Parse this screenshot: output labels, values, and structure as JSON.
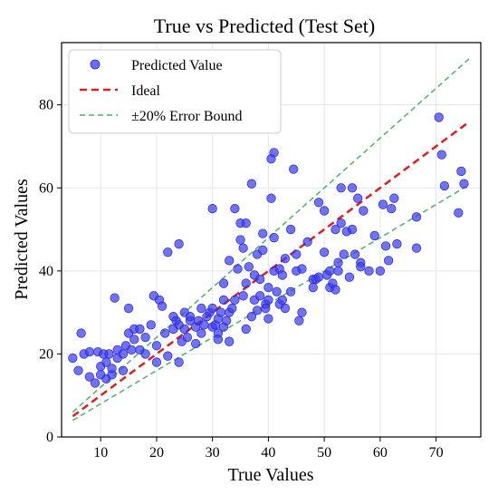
{
  "chart_data": {
    "type": "scatter",
    "title": "True vs Predicted (Test Set)",
    "xlabel": "True Values",
    "ylabel": "Predicted Values",
    "xlim": [
      3,
      78
    ],
    "ylim": [
      0,
      95
    ],
    "xticks": [
      10,
      20,
      30,
      40,
      50,
      60,
      70
    ],
    "yticks": [
      0,
      20,
      40,
      60,
      80
    ],
    "grid": true,
    "legend_position": "top-left",
    "colors": {
      "points": "#3b3bf0",
      "ideal": "#e11d1d",
      "bound": "#4fb06a"
    },
    "series": [
      {
        "name": "Predicted Value",
        "kind": "scatter",
        "points": [
          [
            5,
            19
          ],
          [
            6,
            16
          ],
          [
            7,
            20
          ],
          [
            6.5,
            25
          ],
          [
            8,
            20.5
          ],
          [
            8,
            14.5
          ],
          [
            9,
            13
          ],
          [
            9.5,
            20.5
          ],
          [
            10,
            17
          ],
          [
            10,
            15
          ],
          [
            10.5,
            20
          ],
          [
            11,
            14
          ],
          [
            11,
            18
          ],
          [
            11.5,
            20
          ],
          [
            12,
            15
          ],
          [
            12,
            16.5
          ],
          [
            12.5,
            33.5
          ],
          [
            13,
            21
          ],
          [
            13,
            19
          ],
          [
            14,
            20
          ],
          [
            14,
            16
          ],
          [
            14.5,
            22
          ],
          [
            15,
            25
          ],
          [
            15,
            31
          ],
          [
            15.5,
            21
          ],
          [
            16,
            26
          ],
          [
            16,
            23.5
          ],
          [
            17,
            21
          ],
          [
            17,
            26
          ],
          [
            18,
            20
          ],
          [
            18,
            24
          ],
          [
            19,
            27
          ],
          [
            19.5,
            34
          ],
          [
            20,
            18
          ],
          [
            20,
            22
          ],
          [
            20.5,
            33
          ],
          [
            21,
            31.5
          ],
          [
            21.5,
            25
          ],
          [
            22,
            44.5
          ],
          [
            22,
            19.5
          ],
          [
            23,
            26
          ],
          [
            23,
            29
          ],
          [
            23.5,
            28
          ],
          [
            24,
            46.5
          ],
          [
            24,
            27
          ],
          [
            24,
            18
          ],
          [
            24.5,
            23
          ],
          [
            25,
            30
          ],
          [
            25,
            26
          ],
          [
            25.5,
            24
          ],
          [
            26,
            28
          ],
          [
            26,
            29
          ],
          [
            27,
            26.5
          ],
          [
            27,
            22.5
          ],
          [
            27.5,
            28
          ],
          [
            28,
            25
          ],
          [
            28,
            31
          ],
          [
            28.5,
            27
          ],
          [
            29,
            29
          ],
          [
            29.5,
            30
          ],
          [
            30,
            26.5
          ],
          [
            30,
            55
          ],
          [
            30,
            31
          ],
          [
            30.5,
            27
          ],
          [
            31,
            25
          ],
          [
            31,
            23.5
          ],
          [
            31,
            28.5
          ],
          [
            31.5,
            30
          ],
          [
            32,
            33
          ],
          [
            32,
            26.5
          ],
          [
            32,
            37
          ],
          [
            32.5,
            28
          ],
          [
            33,
            42.5
          ],
          [
            33,
            30
          ],
          [
            33,
            23
          ],
          [
            33.5,
            31
          ],
          [
            34,
            55
          ],
          [
            34,
            33
          ],
          [
            34.5,
            40.5
          ],
          [
            35,
            47.5
          ],
          [
            35,
            51.5
          ],
          [
            35.5,
            45.5
          ],
          [
            35.5,
            34
          ],
          [
            36,
            37
          ],
          [
            36,
            26
          ],
          [
            36,
            51.5
          ],
          [
            36.5,
            41
          ],
          [
            37,
            61
          ],
          [
            37,
            29
          ],
          [
            37.5,
            33
          ],
          [
            37.5,
            39
          ],
          [
            38,
            30.5
          ],
          [
            38,
            44
          ],
          [
            38.5,
            38
          ],
          [
            38.5,
            34
          ],
          [
            39,
            49
          ],
          [
            39,
            45
          ],
          [
            39.5,
            32
          ],
          [
            39.5,
            31
          ],
          [
            40,
            36
          ],
          [
            40,
            33
          ],
          [
            40,
            28.5
          ],
          [
            40.5,
            57.5
          ],
          [
            40.5,
            67
          ],
          [
            41,
            68.5
          ],
          [
            41,
            48
          ],
          [
            41,
            40
          ],
          [
            41.5,
            35
          ],
          [
            42,
            40.5
          ],
          [
            42,
            32
          ],
          [
            42.5,
            33
          ],
          [
            42.5,
            39
          ],
          [
            43,
            43
          ],
          [
            43,
            31
          ],
          [
            44,
            50
          ],
          [
            44,
            35
          ],
          [
            44.5,
            64.5
          ],
          [
            45,
            44
          ],
          [
            45,
            40
          ],
          [
            45.5,
            28
          ],
          [
            46,
            30
          ],
          [
            46,
            40.5
          ],
          [
            47,
            47
          ],
          [
            48,
            36
          ],
          [
            48,
            38
          ],
          [
            48.5,
            38
          ],
          [
            49,
            38.5
          ],
          [
            49,
            56.5
          ],
          [
            50,
            54.5
          ],
          [
            50,
            44.5
          ],
          [
            50.5,
            39
          ],
          [
            51,
            40
          ],
          [
            51,
            36
          ],
          [
            51.5,
            37
          ],
          [
            52,
            50
          ],
          [
            52,
            35.5
          ],
          [
            52.5,
            42
          ],
          [
            52.5,
            40
          ],
          [
            53,
            60
          ],
          [
            53,
            51.5
          ],
          [
            53.5,
            44
          ],
          [
            54,
            49.5
          ],
          [
            54.5,
            38.5
          ],
          [
            55,
            60
          ],
          [
            55,
            50
          ],
          [
            55.5,
            44
          ],
          [
            56,
            57.5
          ],
          [
            56.5,
            42
          ],
          [
            56.5,
            41
          ],
          [
            57,
            54.5
          ],
          [
            58,
            40
          ],
          [
            59,
            48.5
          ],
          [
            60,
            40
          ],
          [
            60.5,
            56
          ],
          [
            61,
            46
          ],
          [
            61.5,
            42.5
          ],
          [
            62,
            55
          ],
          [
            62.5,
            57.5
          ],
          [
            63,
            46.5
          ],
          [
            66.5,
            53
          ],
          [
            66.5,
            45.5
          ],
          [
            70.5,
            77
          ],
          [
            71,
            68
          ],
          [
            71.5,
            60.5
          ],
          [
            74,
            54
          ],
          [
            74.5,
            64
          ],
          [
            75,
            61
          ]
        ]
      },
      {
        "name": "Ideal",
        "kind": "line",
        "style": "dashed",
        "points": [
          [
            5,
            5
          ],
          [
            76,
            76
          ]
        ]
      },
      {
        "name": "±20% Error Bound",
        "kind": "line",
        "style": "dashed",
        "points": [
          [
            5,
            6
          ],
          [
            76,
            91.2
          ]
        ]
      },
      {
        "name": "",
        "kind": "line",
        "style": "dashed",
        "bound_of": "±20% Error Bound",
        "points": [
          [
            5,
            4
          ],
          [
            76,
            60.8
          ]
        ]
      }
    ]
  }
}
